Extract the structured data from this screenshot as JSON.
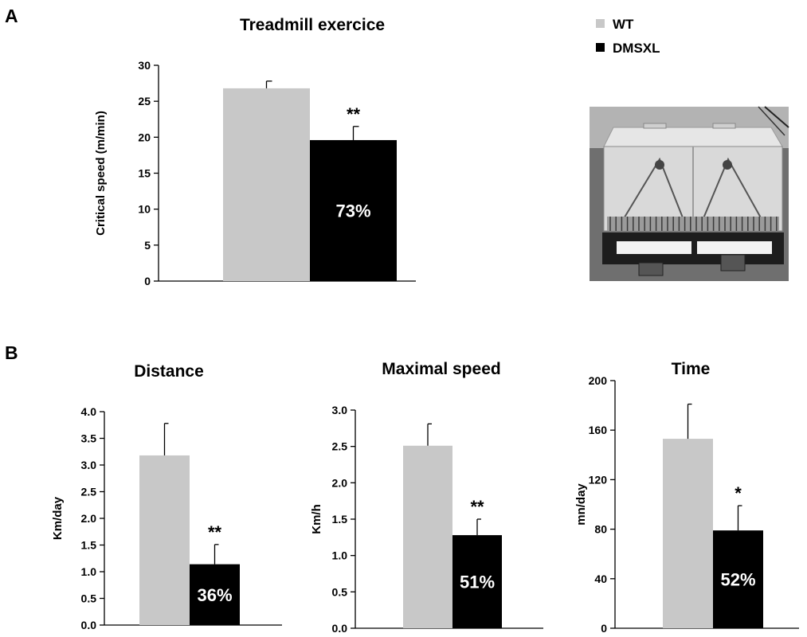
{
  "panels": {
    "a": "A",
    "b": "B"
  },
  "legend": {
    "items": [
      {
        "label": "WT",
        "color": "#c8c8c8"
      },
      {
        "label": "DMSXL",
        "color": "#000000"
      }
    ]
  },
  "colors": {
    "wt": "#c8c8c8",
    "dmsxl": "#000000"
  },
  "photo": {
    "icon": "treadmill-photo"
  },
  "chart_data": [
    {
      "type": "bar",
      "title": "Treadmill exercice",
      "ylabel": "Critical speed (m/min)",
      "ylim": [
        0,
        30
      ],
      "yticks": [
        0,
        5,
        10,
        15,
        20,
        25,
        30
      ],
      "categories": [
        "WT",
        "DMSXL"
      ],
      "values": [
        26.8,
        19.6
      ],
      "errors": [
        1.0,
        1.9
      ],
      "significance": [
        "",
        "**"
      ],
      "bar_labels": [
        "",
        "73%"
      ]
    },
    {
      "type": "bar",
      "title": "Distance",
      "ylabel": "Km/day",
      "ylim": [
        0,
        4.0
      ],
      "yticks": [
        "0.0",
        "0.5",
        "1.0",
        "1.5",
        "2.0",
        "2.5",
        "3.0",
        "3.5",
        "4.0"
      ],
      "categories": [
        "WT",
        "DMSXL"
      ],
      "values": [
        3.18,
        1.14
      ],
      "errors": [
        0.6,
        0.37
      ],
      "significance": [
        "",
        "**"
      ],
      "bar_labels": [
        "",
        "36%"
      ]
    },
    {
      "type": "bar",
      "title": "Maximal speed",
      "ylabel": "Km/h",
      "ylim": [
        0,
        3.0
      ],
      "yticks": [
        "0.0",
        "0.5",
        "1.0",
        "1.5",
        "2.0",
        "2.5",
        "3.0"
      ],
      "categories": [
        "WT",
        "DMSXL"
      ],
      "values": [
        2.51,
        1.28
      ],
      "errors": [
        0.3,
        0.22
      ],
      "significance": [
        "",
        "**"
      ],
      "bar_labels": [
        "",
        "51%"
      ]
    },
    {
      "type": "bar",
      "title": "Time",
      "ylabel": "mn/day",
      "ylim": [
        0,
        200
      ],
      "yticks": [
        "0",
        "40",
        "80",
        "120",
        "160",
        "200"
      ],
      "categories": [
        "WT",
        "DMSXL"
      ],
      "values": [
        153,
        79
      ],
      "errors": [
        28,
        20
      ],
      "significance": [
        "",
        "*"
      ],
      "bar_labels": [
        "",
        "52%"
      ]
    }
  ]
}
